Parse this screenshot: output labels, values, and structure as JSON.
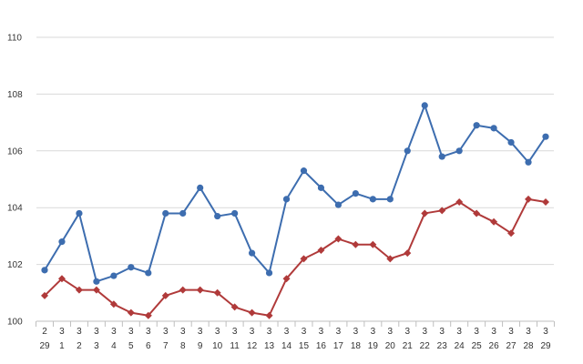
{
  "chart_data": {
    "type": "line",
    "title": "",
    "xlabel": "",
    "ylabel": "",
    "ylim": [
      100,
      110
    ],
    "y_ticks": [
      100,
      102,
      104,
      106,
      108,
      110
    ],
    "grid": true,
    "legend": "none",
    "categories": [
      {
        "month": "2",
        "day": "29"
      },
      {
        "month": "3",
        "day": "1"
      },
      {
        "month": "3",
        "day": "2"
      },
      {
        "month": "3",
        "day": "3"
      },
      {
        "month": "3",
        "day": "4"
      },
      {
        "month": "3",
        "day": "5"
      },
      {
        "month": "3",
        "day": "6"
      },
      {
        "month": "3",
        "day": "7"
      },
      {
        "month": "3",
        "day": "8"
      },
      {
        "month": "3",
        "day": "9"
      },
      {
        "month": "3",
        "day": "10"
      },
      {
        "month": "3",
        "day": "11"
      },
      {
        "month": "3",
        "day": "12"
      },
      {
        "month": "3",
        "day": "13"
      },
      {
        "month": "3",
        "day": "14"
      },
      {
        "month": "3",
        "day": "15"
      },
      {
        "month": "3",
        "day": "16"
      },
      {
        "month": "3",
        "day": "17"
      },
      {
        "month": "3",
        "day": "18"
      },
      {
        "month": "3",
        "day": "19"
      },
      {
        "month": "3",
        "day": "20"
      },
      {
        "month": "3",
        "day": "21"
      },
      {
        "month": "3",
        "day": "22"
      },
      {
        "month": "3",
        "day": "23"
      },
      {
        "month": "3",
        "day": "24"
      },
      {
        "month": "3",
        "day": "25"
      },
      {
        "month": "3",
        "day": "26"
      },
      {
        "month": "3",
        "day": "27"
      },
      {
        "month": "3",
        "day": "28"
      },
      {
        "month": "3",
        "day": "29"
      }
    ],
    "series": [
      {
        "color": "#3d6daf",
        "marker": "circle",
        "values": [
          101.8,
          102.8,
          103.8,
          101.4,
          101.6,
          101.9,
          101.7,
          103.8,
          103.8,
          104.7,
          103.7,
          103.8,
          102.4,
          101.7,
          104.3,
          105.3,
          104.7,
          104.1,
          104.5,
          104.3,
          104.3,
          106.0,
          107.6,
          105.8,
          106.0,
          106.9,
          106.8,
          106.3,
          105.6,
          106.5
        ]
      },
      {
        "color": "#b03a3a",
        "marker": "diamond",
        "values": [
          100.9,
          101.5,
          101.1,
          101.1,
          100.6,
          100.3,
          100.2,
          100.9,
          101.1,
          101.1,
          101.0,
          100.5,
          100.3,
          100.2,
          101.5,
          102.2,
          102.5,
          102.9,
          102.7,
          102.7,
          102.2,
          102.4,
          103.8,
          103.9,
          104.2,
          103.8,
          103.5,
          103.1,
          104.3,
          104.2
        ]
      }
    ],
    "colors": {
      "grid": "#d9d9d9",
      "axis": "#bfbfbf",
      "y_tick_text": "#3d6daf",
      "x_tick_text": "#333333"
    }
  }
}
